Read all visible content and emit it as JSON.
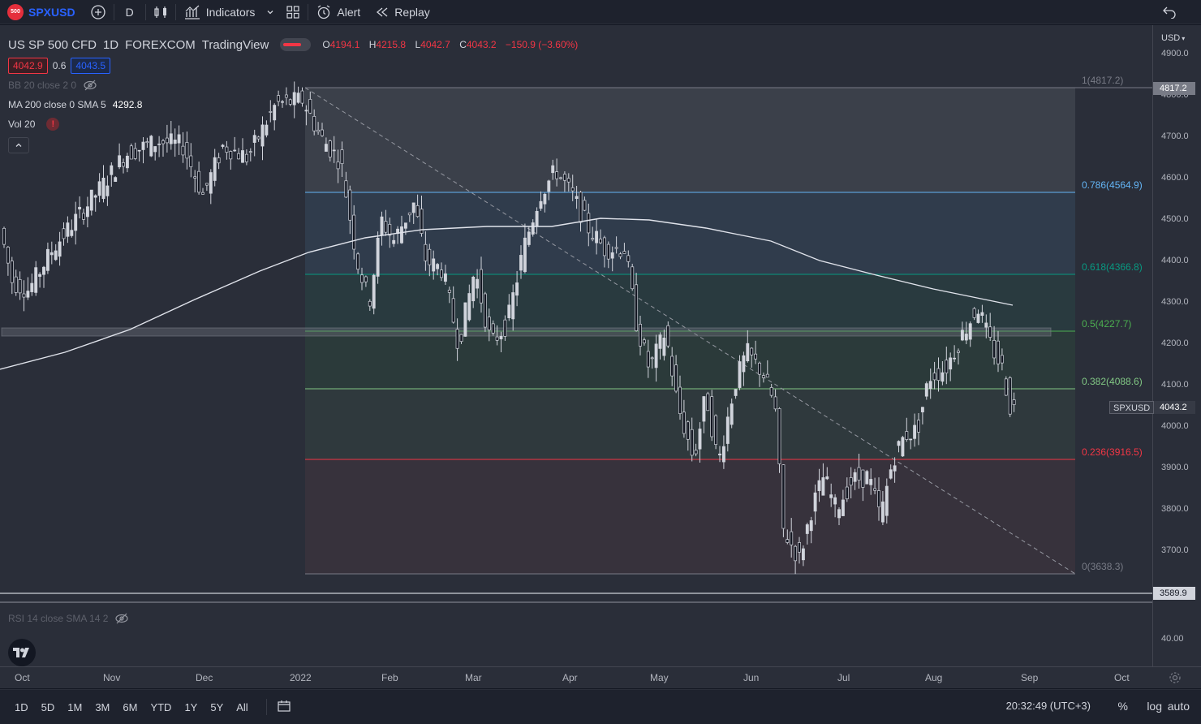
{
  "topbar": {
    "badge": "500",
    "symbol": "SPXUSD",
    "interval": "D",
    "indicators_label": "Indicators",
    "alert_label": "Alert",
    "replay_label": "Replay"
  },
  "legend": {
    "title_parts": [
      "US SP 500 CFD",
      "1D",
      "FOREXCOM",
      "TradingView"
    ],
    "ohlc": {
      "o_label": "O",
      "o": "4194.1",
      "h_label": "H",
      "h": "4215.8",
      "l_label": "L",
      "l": "4042.7",
      "c_label": "C",
      "c": "4043.2",
      "change": "−150.9 (−3.60%)"
    },
    "bid": "4042.9",
    "spread": "0.6",
    "ask": "4043.5",
    "bb": "BB 20 close 2 0",
    "ma": "MA 200 close 0 SMA 5",
    "ma_value": "4292.8",
    "vol": "Vol 20"
  },
  "price_axis": {
    "currency": "USD",
    "ticks": [
      "4900.0",
      "4800.0",
      "4700.0",
      "4600.0",
      "4500.0",
      "4400.0",
      "4300.0",
      "4200.0",
      "4100.0",
      "4000.0",
      "3900.0",
      "3800.0",
      "3700.0"
    ],
    "high_label": "4817.2",
    "last_label": "4043.2",
    "symbol_tag": "SPXUSD",
    "low_label": "3589.9",
    "rsi_tick": "40.00"
  },
  "fib_levels": [
    {
      "label": "1(4817.2)",
      "color": "#787b86"
    },
    {
      "label": "0.786(4564.9)",
      "color": "#64b5f6"
    },
    {
      "label": "0.618(4366.8)",
      "color": "#089981"
    },
    {
      "label": "0.5(4227.7)",
      "color": "#4caf50"
    },
    {
      "label": "0.382(4088.6)",
      "color": "#81c784"
    },
    {
      "label": "0.236(3916.5)",
      "color": "#f23645"
    },
    {
      "label": "0(3638.3)",
      "color": "#787b86"
    }
  ],
  "rsi": {
    "legend": "RSI 14 close SMA 14 2"
  },
  "time_axis": [
    "Oct",
    "Nov",
    "Dec",
    "2022",
    "Feb",
    "Mar",
    "Apr",
    "May",
    "Jun",
    "Jul",
    "Aug",
    "Sep",
    "Oct"
  ],
  "bottombar": {
    "ranges": [
      "1D",
      "5D",
      "1M",
      "3M",
      "6M",
      "YTD",
      "1Y",
      "5Y",
      "All"
    ],
    "clock": "20:32:49 (UTC+3)",
    "percent": "%",
    "log": "log",
    "auto": "auto"
  },
  "colors": {
    "up": "#d1d4dc",
    "down": "#131722",
    "accent": "#2962ff",
    "red": "#f23645"
  }
}
